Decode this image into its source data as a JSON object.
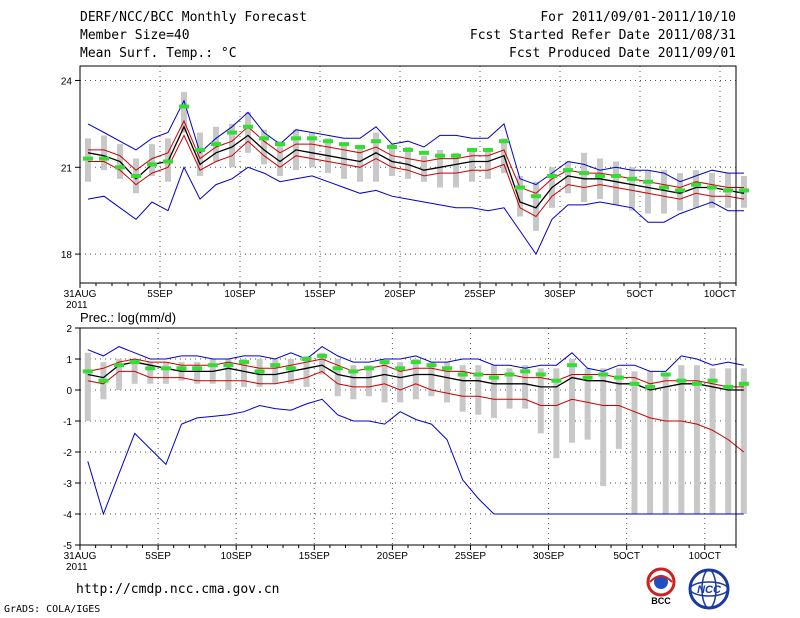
{
  "header": {
    "title": "DERF/NCC/BCC Monthly Forecast",
    "member_size": "Member Size=40",
    "variable": "Mean Surf. Temp.: °C",
    "period": "For 2011/09/01-2011/10/10",
    "fcst_started": "Fcst Started Refer Date 2011/08/31",
    "fcst_produced": "Fcst Produced Date 2011/09/01"
  },
  "footer": {
    "url": "http://cmdp.ncc.cma.gov.cn",
    "grads": "GrADS: COLA/IGES",
    "logo_left_text": "BCC",
    "logo_right_text": "NCC"
  },
  "colors": {
    "envelope": "#0000cc",
    "mean": "#000000",
    "spread": "#cc0000",
    "observed": "#33dd33",
    "bar": "#c8c8c8"
  },
  "chart_data": [
    {
      "type": "line",
      "title": "Mean Surf. Temp.: °C",
      "ylim": [
        17,
        24.5
      ],
      "yticks": [
        18,
        21,
        24
      ],
      "x_tick_labels": [
        "31AUG",
        "5SEP",
        "10SEP",
        "15SEP",
        "20SEP",
        "25SEP",
        "30SEP",
        "5OCT",
        "10OCT"
      ],
      "x_year_label": "2011",
      "series": [
        {
          "name": "max",
          "values": [
            22.5,
            22.2,
            21.9,
            21.6,
            22.0,
            22.2,
            23.3,
            21.5,
            22.0,
            22.4,
            22.9,
            22.2,
            21.8,
            22.3,
            22.2,
            22.1,
            22.0,
            22.0,
            22.4,
            21.8,
            21.9,
            21.7,
            22.1,
            22.1,
            22.0,
            22.0,
            22.5,
            20.6,
            20.4,
            20.8,
            21.2,
            21.1,
            20.9,
            21.0,
            20.9,
            20.9,
            20.8,
            20.5,
            20.7,
            20.9,
            20.8,
            20.8
          ]
        },
        {
          "name": "mean_plus",
          "values": [
            21.6,
            21.6,
            21.4,
            20.9,
            21.3,
            21.5,
            22.6,
            21.3,
            21.7,
            21.9,
            22.4,
            21.9,
            21.5,
            21.8,
            21.8,
            21.7,
            21.6,
            21.5,
            21.7,
            21.4,
            21.3,
            21.2,
            21.3,
            21.3,
            21.4,
            21.4,
            21.6,
            20.3,
            20.1,
            20.6,
            20.9,
            20.8,
            20.8,
            20.7,
            20.6,
            20.5,
            20.4,
            20.3,
            20.5,
            20.4,
            20.3,
            20.3
          ]
        },
        {
          "name": "mean",
          "values": [
            21.5,
            21.4,
            21.2,
            20.6,
            21.1,
            21.2,
            22.4,
            21.1,
            21.5,
            21.7,
            22.1,
            21.6,
            21.2,
            21.6,
            21.5,
            21.4,
            21.3,
            21.2,
            21.5,
            21.2,
            21.1,
            20.9,
            21.0,
            21.1,
            21.2,
            21.2,
            21.4,
            19.8,
            19.6,
            20.3,
            20.7,
            20.6,
            20.6,
            20.5,
            20.4,
            20.3,
            20.2,
            20.1,
            20.3,
            20.3,
            20.2,
            20.1
          ]
        },
        {
          "name": "mean_minus",
          "values": [
            21.2,
            21.2,
            20.9,
            20.4,
            20.8,
            21.0,
            22.1,
            20.9,
            21.2,
            21.4,
            21.9,
            21.4,
            21.0,
            21.4,
            21.3,
            21.2,
            21.1,
            21.0,
            21.3,
            21.0,
            20.9,
            20.7,
            20.8,
            20.8,
            20.9,
            20.9,
            21.1,
            19.6,
            19.3,
            20.0,
            20.4,
            20.3,
            20.4,
            20.3,
            20.2,
            20.1,
            20.0,
            19.9,
            20.1,
            20.0,
            20.0,
            19.9
          ]
        },
        {
          "name": "min",
          "values": [
            19.9,
            20.0,
            19.6,
            19.2,
            19.8,
            19.5,
            21.0,
            19.9,
            20.4,
            20.6,
            21.0,
            20.8,
            20.5,
            20.6,
            20.7,
            20.5,
            20.3,
            20.1,
            20.2,
            20.0,
            19.9,
            19.8,
            19.7,
            19.6,
            19.6,
            19.5,
            19.6,
            18.8,
            18.0,
            19.2,
            19.7,
            19.7,
            19.8,
            19.7,
            19.6,
            19.1,
            19.1,
            19.4,
            19.6,
            19.8,
            19.5,
            19.5
          ]
        },
        {
          "name": "observed",
          "values": [
            21.3,
            21.3,
            21.0,
            20.7,
            21.1,
            21.2,
            23.1,
            21.6,
            21.8,
            22.2,
            22.4,
            22.0,
            21.8,
            22.0,
            22.0,
            21.9,
            21.8,
            21.7,
            21.9,
            21.7,
            21.6,
            21.5,
            21.4,
            21.4,
            21.6,
            21.6,
            21.9,
            20.3,
            20.0,
            20.7,
            20.9,
            20.8,
            20.7,
            20.7,
            20.6,
            20.5,
            20.3,
            20.2,
            20.4,
            20.3,
            20.2,
            20.2
          ]
        },
        {
          "name": "bar_top",
          "values": [
            22.0,
            22.1,
            21.8,
            21.3,
            21.8,
            22.0,
            23.6,
            22.2,
            22.4,
            22.5,
            22.9,
            22.3,
            21.9,
            22.3,
            22.2,
            22.0,
            21.8,
            21.7,
            22.2,
            21.8,
            21.7,
            21.4,
            21.6,
            21.5,
            21.6,
            21.6,
            22.0,
            20.7,
            20.5,
            21.0,
            21.2,
            21.5,
            21.3,
            21.2,
            21.0,
            20.9,
            20.9,
            20.8,
            20.9,
            20.8,
            20.8,
            20.7
          ]
        },
        {
          "name": "bar_bottom",
          "values": [
            20.5,
            20.9,
            20.6,
            20.1,
            20.7,
            20.5,
            22.2,
            20.7,
            21.2,
            21.0,
            21.5,
            21.1,
            20.7,
            20.9,
            21.0,
            20.8,
            20.6,
            20.5,
            20.5,
            20.7,
            20.6,
            20.5,
            20.3,
            20.3,
            20.5,
            20.6,
            20.8,
            19.3,
            18.8,
            19.6,
            20.1,
            19.8,
            19.9,
            19.7,
            19.5,
            19.4,
            19.4,
            19.5,
            19.6,
            19.6,
            19.6,
            19.6
          ]
        }
      ]
    },
    {
      "type": "line",
      "title": "Prec.: log(mm/d)",
      "ylim": [
        -5,
        2
      ],
      "yticks": [
        -5,
        -4,
        -3,
        -2,
        -1,
        0,
        1,
        2
      ],
      "x_tick_labels": [
        "31AUG",
        "5SEP",
        "10SEP",
        "15SEP",
        "20SEP",
        "25SEP",
        "30SEP",
        "5OCT",
        "10OCT"
      ],
      "x_year_label": "2011",
      "series": [
        {
          "name": "max",
          "values": [
            1.3,
            1.1,
            1.4,
            1.2,
            1.0,
            1.0,
            1.1,
            1.1,
            1.0,
            1.0,
            1.1,
            1.1,
            1.0,
            1.2,
            1.0,
            1.4,
            1.1,
            0.9,
            0.9,
            1.0,
            1.0,
            1.1,
            0.9,
            0.9,
            1.0,
            1.0,
            0.8,
            0.8,
            0.7,
            0.8,
            0.8,
            1.2,
            0.7,
            0.6,
            0.8,
            0.8,
            0.6,
            0.6,
            1.1,
            1.0,
            0.8,
            0.9,
            0.8
          ]
        },
        {
          "name": "mean_plus",
          "values": [
            0.6,
            0.7,
            0.9,
            1.0,
            0.9,
            0.9,
            0.8,
            0.8,
            0.8,
            0.9,
            0.8,
            0.7,
            0.7,
            0.8,
            0.9,
            1.0,
            0.8,
            0.6,
            0.7,
            0.8,
            0.6,
            0.7,
            0.7,
            0.6,
            0.6,
            0.5,
            0.5,
            0.5,
            0.4,
            0.4,
            0.3,
            0.5,
            0.5,
            0.5,
            0.4,
            0.4,
            0.2,
            0.3,
            0.3,
            0.3,
            0.2,
            0.1,
            0.1
          ]
        },
        {
          "name": "mean",
          "values": [
            0.5,
            0.4,
            0.8,
            0.9,
            0.8,
            0.7,
            0.6,
            0.6,
            0.6,
            0.7,
            0.6,
            0.5,
            0.5,
            0.6,
            0.7,
            0.8,
            0.5,
            0.4,
            0.4,
            0.5,
            0.4,
            0.5,
            0.5,
            0.4,
            0.3,
            0.3,
            0.2,
            0.2,
            0.2,
            0.1,
            0.1,
            0.4,
            0.3,
            0.3,
            0.2,
            0.2,
            0.0,
            0.1,
            0.2,
            0.2,
            0.1,
            0.0,
            0.0
          ]
        },
        {
          "name": "mean_minus",
          "values": [
            0.3,
            0.2,
            0.6,
            0.6,
            0.4,
            0.4,
            0.4,
            0.3,
            0.3,
            0.3,
            0.3,
            0.2,
            0.2,
            0.3,
            0.4,
            0.6,
            0.2,
            0.1,
            0.1,
            0.2,
            0.0,
            0.2,
            0.0,
            -0.1,
            -0.2,
            -0.2,
            -0.3,
            -0.3,
            -0.3,
            -0.5,
            -0.5,
            -0.3,
            -0.4,
            -0.5,
            -0.5,
            -0.7,
            -0.9,
            -1.0,
            -1.0,
            -1.1,
            -1.3,
            -1.6,
            -2.0
          ]
        },
        {
          "name": "min",
          "values": [
            -2.3,
            -4.0,
            -2.7,
            -1.4,
            -1.9,
            -2.4,
            -1.1,
            -0.9,
            -0.85,
            -0.8,
            -0.7,
            -0.5,
            -0.6,
            -0.65,
            -0.45,
            -0.3,
            -0.8,
            -1.0,
            -1.0,
            -1.1,
            -0.7,
            -0.95,
            -1.1,
            -1.6,
            -2.9,
            -3.5,
            -4.0,
            -4.0,
            -4.0,
            -4.0,
            -4.0,
            -4.0,
            -4.0,
            -4.0,
            -4.0,
            -4.0,
            -4.0,
            -4.0,
            -4.0,
            -4.0,
            -4.0,
            -4.0,
            -4.0
          ]
        },
        {
          "name": "observed",
          "values": [
            0.6,
            0.3,
            0.8,
            0.9,
            0.7,
            0.7,
            0.7,
            0.7,
            0.8,
            0.8,
            0.9,
            0.6,
            0.8,
            0.7,
            1.0,
            1.1,
            0.7,
            0.6,
            0.7,
            0.9,
            0.7,
            0.9,
            0.8,
            0.7,
            0.5,
            0.5,
            0.4,
            0.5,
            0.6,
            0.5,
            0.3,
            0.8,
            0.4,
            0.5,
            0.4,
            0.2,
            0.1,
            0.5,
            0.3,
            0.2,
            0.3,
            0.1,
            0.2
          ]
        },
        {
          "name": "bar_top",
          "values": [
            1.2,
            0.9,
            1.0,
            1.0,
            0.9,
            0.9,
            0.9,
            0.9,
            1.0,
            1.0,
            1.0,
            1.0,
            1.0,
            1.0,
            1.1,
            1.2,
            1.0,
            0.8,
            0.8,
            0.9,
            0.9,
            1.0,
            0.9,
            0.9,
            0.8,
            0.8,
            0.8,
            0.7,
            0.8,
            0.7,
            0.7,
            1.0,
            0.7,
            0.7,
            0.7,
            0.6,
            0.6,
            0.5,
            0.8,
            0.8,
            0.7,
            0.7,
            0.7
          ]
        },
        {
          "name": "bar_bottom",
          "values": [
            -1.0,
            -0.3,
            0.0,
            0.2,
            0.2,
            0.2,
            0.3,
            0.2,
            0.2,
            0.0,
            0.1,
            0.1,
            0.2,
            0.2,
            0.1,
            0.5,
            -0.2,
            -0.3,
            -0.2,
            -0.4,
            -0.4,
            -0.3,
            -0.2,
            -0.4,
            -0.7,
            -0.8,
            -0.9,
            -0.6,
            -0.6,
            -1.4,
            -2.2,
            -1.7,
            -1.6,
            -3.1,
            -1.9,
            -4.0,
            -4.0,
            -4.0,
            -4.0,
            -4.0,
            -4.0,
            -4.0,
            -4.0
          ]
        }
      ]
    }
  ]
}
